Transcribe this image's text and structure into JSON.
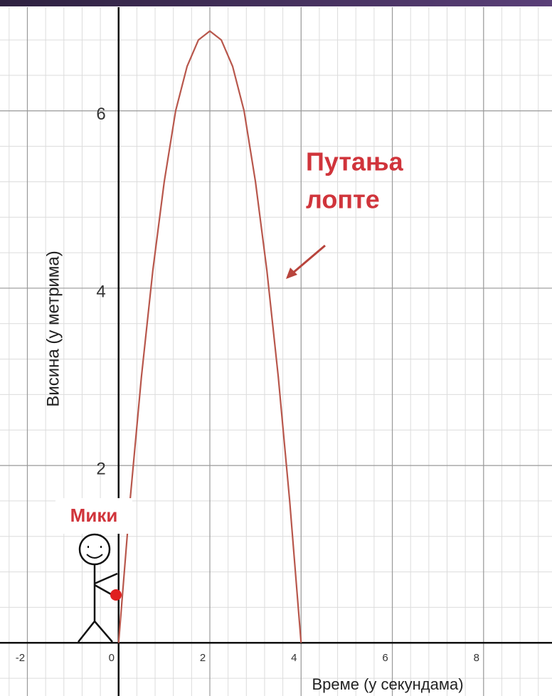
{
  "chart_data": {
    "type": "line",
    "x_label": "Време (у секундама)",
    "y_label": "Висина (у метрима)",
    "annotation": [
      "Путања",
      "лопте"
    ],
    "person_label": "Мики",
    "x": [
      0,
      0.25,
      0.5,
      0.75,
      1,
      1.25,
      1.5,
      1.75,
      2,
      2.25,
      2.5,
      2.75,
      3,
      3.25,
      3.5,
      3.75,
      4
    ],
    "series": [
      {
        "color": "#b8574c",
        "values": [
          0,
          1.6,
          3.0,
          4.2,
          5.2,
          6.0,
          6.5,
          6.8,
          6.9,
          6.8,
          6.5,
          6.0,
          5.2,
          4.2,
          3.0,
          1.6,
          0
        ]
      }
    ],
    "xlim": [
      -2.6,
      9.5
    ],
    "ylim": [
      -0.6,
      7.17
    ],
    "xticks": [
      -2,
      0,
      2,
      4,
      6,
      8
    ],
    "yticks": [
      2,
      4,
      6
    ],
    "grid": true
  }
}
